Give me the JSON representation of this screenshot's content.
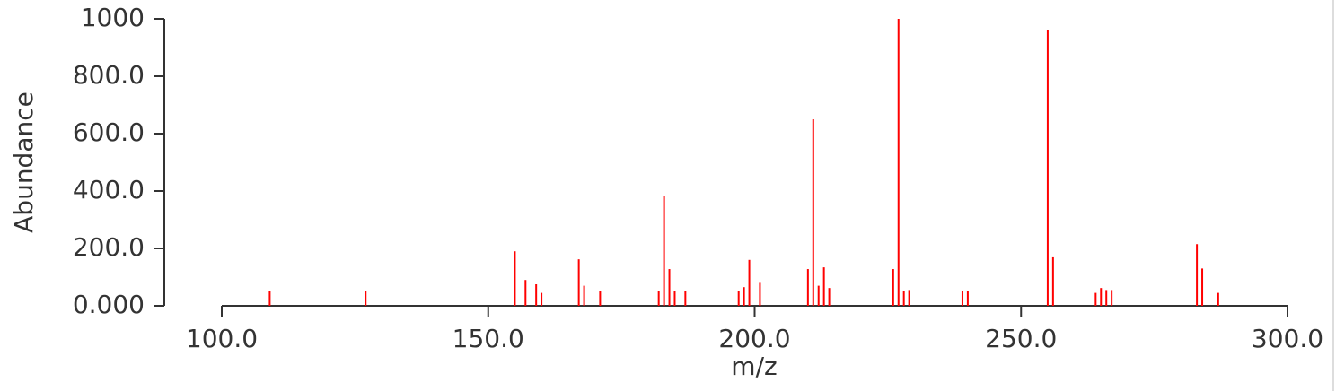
{
  "chart_data": {
    "type": "stick",
    "xlabel": "m/z",
    "ylabel": "Abundance",
    "color": "#ff0000",
    "x": [
      109,
      127,
      155,
      157,
      159,
      160,
      167,
      168,
      171,
      182,
      183,
      184,
      185,
      187,
      197,
      198,
      199,
      201,
      210,
      211,
      212,
      213,
      214,
      226,
      227,
      228,
      229,
      239,
      240,
      255,
      256,
      264,
      265,
      266,
      267,
      283,
      284,
      287
    ],
    "values": [
      50,
      50,
      190,
      90,
      75,
      45,
      162,
      70,
      50,
      50,
      384,
      128,
      50,
      50,
      50,
      65,
      160,
      80,
      128,
      650,
      70,
      134,
      62,
      128,
      1000,
      50,
      55,
      50,
      50,
      962,
      169,
      45,
      62,
      55,
      55,
      215,
      130,
      45
    ],
    "xlim": [
      100,
      300
    ],
    "xticks": [
      {
        "value": 100,
        "label": "100.0"
      },
      {
        "value": 150,
        "label": "150.0"
      },
      {
        "value": 200,
        "label": "200.0"
      },
      {
        "value": 250,
        "label": "250.0"
      },
      {
        "value": 300,
        "label": "300.0"
      }
    ],
    "ylim": [
      0,
      1000
    ],
    "yticks": [
      {
        "value": 0,
        "label": "0.000"
      },
      {
        "value": 200,
        "label": "200.0"
      },
      {
        "value": 400,
        "label": "400.0"
      },
      {
        "value": 600,
        "label": "600.0"
      },
      {
        "value": 800,
        "label": "800.0"
      },
      {
        "value": 1000,
        "label": "1000"
      }
    ]
  }
}
